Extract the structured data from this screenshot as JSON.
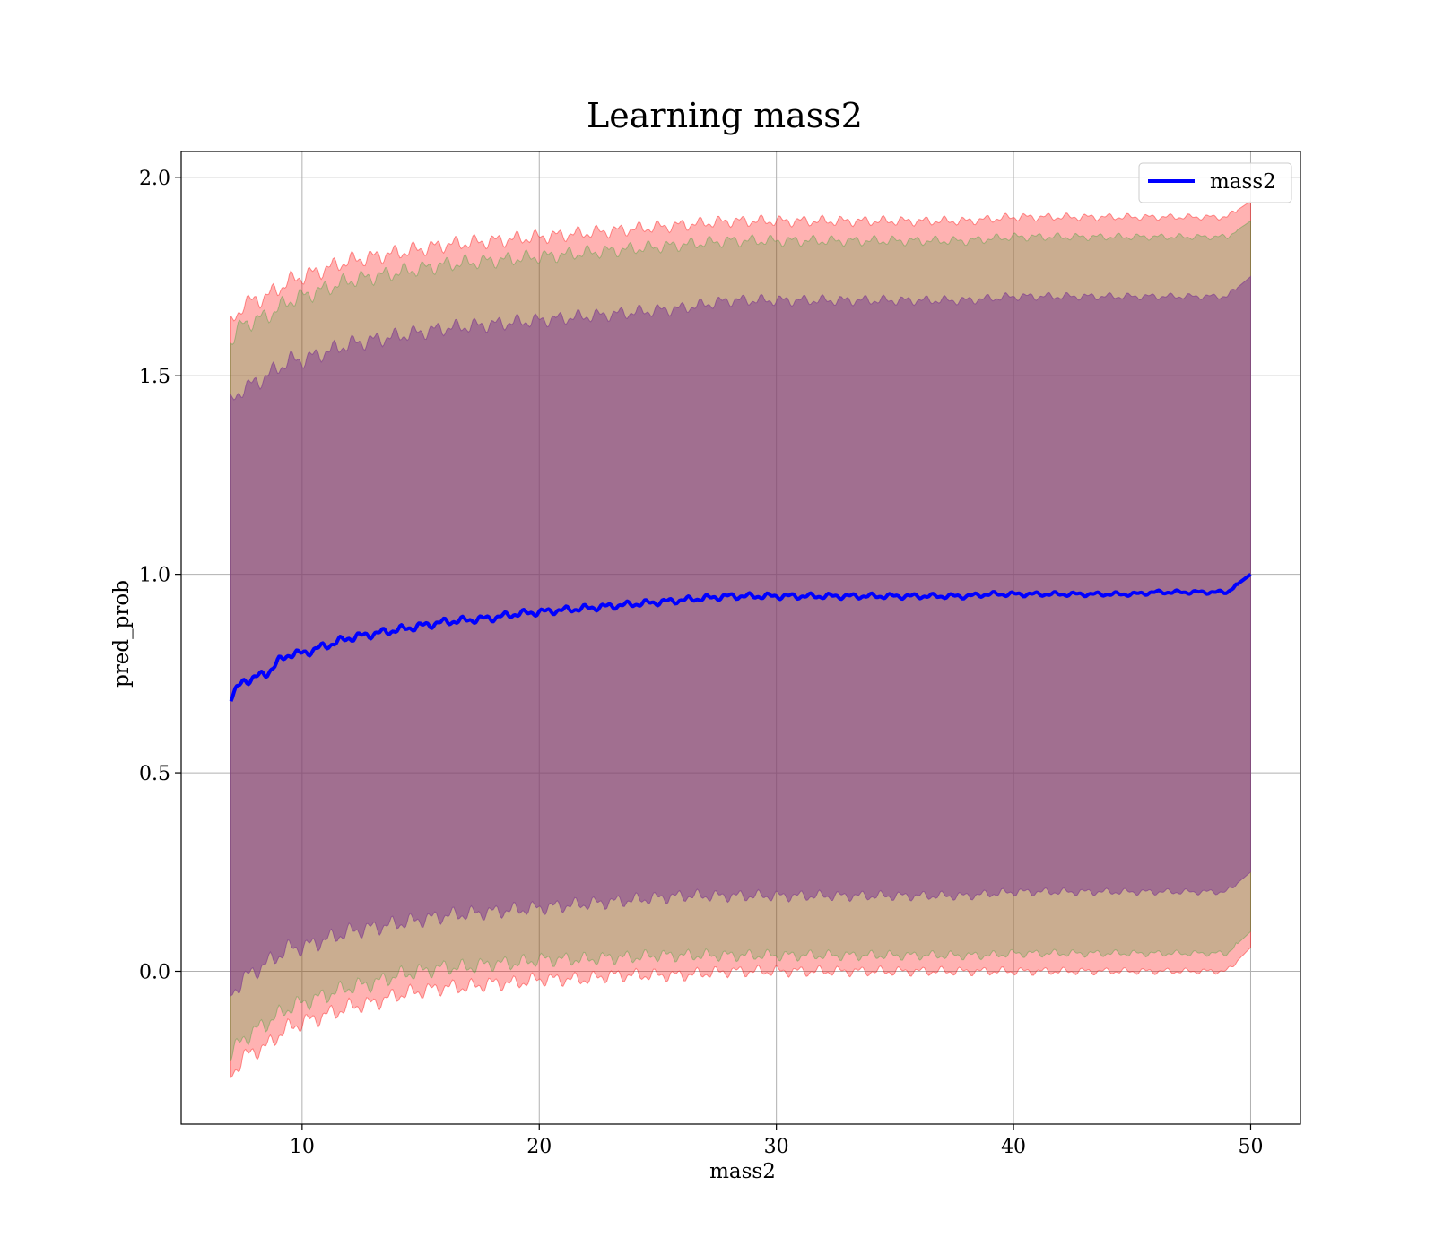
{
  "chart_data": {
    "type": "line",
    "title": "Learning mass2",
    "xlabel": "mass2",
    "ylabel": "pred_prob",
    "xlim": [
      4.9,
      52.1
    ],
    "ylim": [
      -0.385,
      2.065
    ],
    "xticks": [
      10,
      20,
      30,
      40,
      50
    ],
    "yticks": [
      0.0,
      0.5,
      1.0,
      1.5,
      2.0
    ],
    "xtick_labels": [
      "10",
      "20",
      "30",
      "40",
      "50"
    ],
    "ytick_labels": [
      "0.0",
      "0.5",
      "1.0",
      "1.5",
      "2.0"
    ],
    "grid": true,
    "legend": {
      "position": "top-right",
      "entries": [
        "mass2"
      ]
    },
    "series": [
      {
        "name": "mass2",
        "color": "#0000ff",
        "x": [
          7,
          7.5,
          8,
          8.5,
          9,
          9.5,
          10,
          11,
          12,
          13,
          14,
          15,
          16,
          17,
          18,
          19,
          20,
          21,
          22,
          23,
          24,
          25,
          26,
          27,
          28,
          29,
          30,
          31,
          32,
          33,
          34,
          35,
          36,
          37,
          38,
          39,
          40,
          41,
          42,
          43,
          44,
          45,
          46,
          47,
          48,
          49,
          50
        ],
        "values": [
          0.69,
          0.73,
          0.74,
          0.75,
          0.78,
          0.8,
          0.8,
          0.82,
          0.84,
          0.85,
          0.86,
          0.87,
          0.88,
          0.885,
          0.89,
          0.9,
          0.905,
          0.91,
          0.915,
          0.92,
          0.925,
          0.93,
          0.935,
          0.94,
          0.945,
          0.945,
          0.945,
          0.945,
          0.945,
          0.945,
          0.945,
          0.945,
          0.945,
          0.945,
          0.945,
          0.95,
          0.95,
          0.95,
          0.95,
          0.95,
          0.95,
          0.95,
          0.955,
          0.955,
          0.955,
          0.955,
          1.0
        ]
      }
    ],
    "bands": [
      {
        "name": "outer band",
        "color": "#ff0000",
        "opacity": 0.3,
        "x": [
          7,
          7.5,
          8,
          8.5,
          9,
          9.5,
          10,
          11,
          12,
          13,
          14,
          15,
          16,
          17,
          18,
          19,
          20,
          21,
          22,
          23,
          24,
          25,
          26,
          27,
          28,
          29,
          30,
          31,
          32,
          33,
          34,
          35,
          36,
          37,
          38,
          39,
          40,
          41,
          42,
          43,
          44,
          45,
          46,
          47,
          48,
          49,
          50
        ],
        "lower": [
          -0.26,
          -0.22,
          -0.2,
          -0.19,
          -0.16,
          -0.14,
          -0.13,
          -0.11,
          -0.09,
          -0.08,
          -0.06,
          -0.05,
          -0.04,
          -0.04,
          -0.03,
          -0.03,
          -0.02,
          -0.02,
          -0.02,
          -0.01,
          -0.01,
          -0.01,
          -0.01,
          -0.005,
          0.0,
          0.0,
          0.0,
          0.0,
          0.0,
          0.0,
          0.0,
          0.0,
          0.0,
          0.0,
          0.0,
          0.0,
          0.0,
          0.0,
          0.0,
          0.0,
          0.0,
          0.0,
          0.0,
          0.0,
          0.0,
          0.0,
          0.06
        ],
        "upper": [
          1.63,
          1.68,
          1.69,
          1.7,
          1.72,
          1.74,
          1.75,
          1.77,
          1.79,
          1.8,
          1.81,
          1.82,
          1.83,
          1.835,
          1.84,
          1.845,
          1.85,
          1.855,
          1.86,
          1.865,
          1.87,
          1.875,
          1.88,
          1.885,
          1.89,
          1.89,
          1.89,
          1.89,
          1.89,
          1.89,
          1.89,
          1.89,
          1.89,
          1.89,
          1.89,
          1.895,
          1.9,
          1.9,
          1.9,
          1.9,
          1.9,
          1.9,
          1.9,
          1.9,
          1.9,
          1.9,
          1.94
        ]
      },
      {
        "name": "middle band",
        "color": "#2ca02c",
        "opacity": 0.25,
        "x": [
          7,
          7.5,
          8,
          8.5,
          9,
          9.5,
          10,
          11,
          12,
          13,
          14,
          15,
          16,
          17,
          18,
          19,
          20,
          21,
          22,
          23,
          24,
          25,
          26,
          27,
          28,
          29,
          30,
          31,
          32,
          33,
          34,
          35,
          36,
          37,
          38,
          39,
          40,
          41,
          42,
          43,
          44,
          45,
          46,
          47,
          48,
          49,
          50
        ],
        "lower": [
          -0.21,
          -0.17,
          -0.15,
          -0.13,
          -0.11,
          -0.09,
          -0.08,
          -0.06,
          -0.04,
          -0.03,
          -0.01,
          0.0,
          0.01,
          0.01,
          0.02,
          0.02,
          0.03,
          0.03,
          0.03,
          0.035,
          0.035,
          0.04,
          0.04,
          0.04,
          0.04,
          0.04,
          0.04,
          0.04,
          0.04,
          0.04,
          0.04,
          0.04,
          0.04,
          0.04,
          0.04,
          0.04,
          0.045,
          0.045,
          0.045,
          0.045,
          0.045,
          0.045,
          0.045,
          0.045,
          0.045,
          0.045,
          0.1
        ],
        "upper": [
          1.59,
          1.63,
          1.64,
          1.65,
          1.67,
          1.69,
          1.7,
          1.72,
          1.74,
          1.75,
          1.76,
          1.77,
          1.78,
          1.785,
          1.79,
          1.795,
          1.8,
          1.805,
          1.81,
          1.815,
          1.82,
          1.825,
          1.83,
          1.835,
          1.84,
          1.84,
          1.84,
          1.84,
          1.84,
          1.84,
          1.84,
          1.84,
          1.84,
          1.84,
          1.84,
          1.845,
          1.85,
          1.85,
          1.85,
          1.85,
          1.85,
          1.85,
          1.85,
          1.85,
          1.85,
          1.85,
          1.89
        ]
      },
      {
        "name": "inner band",
        "color": "#7f3d8f",
        "opacity": 0.55,
        "x": [
          7,
          7.5,
          8,
          8.5,
          9,
          9.5,
          10,
          11,
          12,
          13,
          14,
          15,
          16,
          17,
          18,
          19,
          20,
          21,
          22,
          23,
          24,
          25,
          26,
          27,
          28,
          29,
          30,
          31,
          32,
          33,
          34,
          35,
          36,
          37,
          38,
          39,
          40,
          41,
          42,
          43,
          44,
          45,
          46,
          47,
          48,
          49,
          50
        ],
        "lower": [
          -0.06,
          -0.02,
          0.0,
          0.02,
          0.04,
          0.06,
          0.06,
          0.08,
          0.1,
          0.11,
          0.12,
          0.13,
          0.14,
          0.145,
          0.15,
          0.155,
          0.16,
          0.165,
          0.17,
          0.175,
          0.18,
          0.185,
          0.19,
          0.19,
          0.19,
          0.19,
          0.19,
          0.19,
          0.19,
          0.19,
          0.19,
          0.19,
          0.19,
          0.19,
          0.19,
          0.195,
          0.2,
          0.2,
          0.2,
          0.2,
          0.2,
          0.2,
          0.2,
          0.2,
          0.2,
          0.2,
          0.25
        ],
        "upper": [
          1.43,
          1.47,
          1.48,
          1.5,
          1.52,
          1.54,
          1.54,
          1.56,
          1.58,
          1.59,
          1.6,
          1.61,
          1.62,
          1.625,
          1.63,
          1.635,
          1.64,
          1.645,
          1.65,
          1.655,
          1.66,
          1.665,
          1.67,
          1.68,
          1.69,
          1.69,
          1.69,
          1.69,
          1.69,
          1.69,
          1.69,
          1.69,
          1.69,
          1.69,
          1.69,
          1.695,
          1.7,
          1.7,
          1.7,
          1.7,
          1.7,
          1.7,
          1.7,
          1.7,
          1.7,
          1.7,
          1.75
        ]
      }
    ]
  }
}
